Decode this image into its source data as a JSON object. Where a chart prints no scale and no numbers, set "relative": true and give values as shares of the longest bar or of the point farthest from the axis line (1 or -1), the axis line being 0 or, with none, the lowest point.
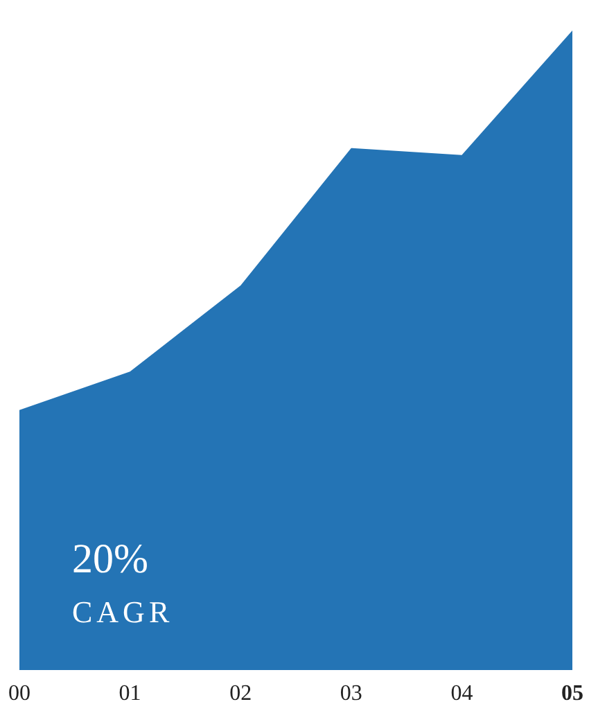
{
  "chart_data": {
    "type": "area",
    "categories": [
      "00",
      "01",
      "02",
      "03",
      "04",
      "05"
    ],
    "values": [
      0.406,
      0.466,
      0.601,
      0.816,
      0.805,
      1
    ],
    "color": "#2474b5",
    "relative": true,
    "annotations": [
      "20%",
      "CAGR"
    ]
  }
}
